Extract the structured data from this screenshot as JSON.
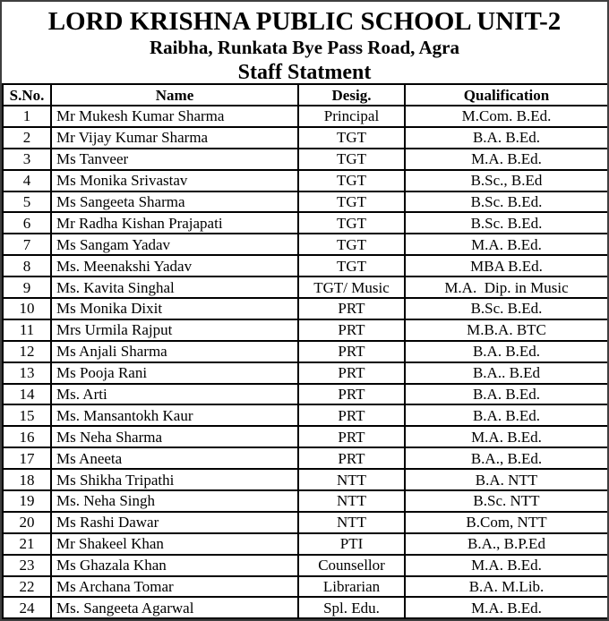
{
  "page": {
    "title": "LORD KRISHNA PUBLIC SCHOOL UNIT-2",
    "subtitle": "Raibha, Runkata Bye Pass Road, Agra",
    "section_title": "Staff Statment"
  },
  "colors": {
    "text": "#000000",
    "background": "#ffffff",
    "table_border": "#000000",
    "page_border": "#3f3f3f"
  },
  "table": {
    "headers": [
      "S.No.",
      "Name",
      "Desig.",
      "Qualification"
    ],
    "rows": [
      {
        "sno": "1",
        "name": "Mr Mukesh Kumar Sharma",
        "desig": "Principal",
        "qualification": "M.Com. B.Ed."
      },
      {
        "sno": "2",
        "name": "Mr Vijay Kumar Sharma",
        "desig": "TGT",
        "qualification": "B.A. B.Ed."
      },
      {
        "sno": "3",
        "name": "Ms Tanveer",
        "desig": "TGT",
        "qualification": "M.A. B.Ed."
      },
      {
        "sno": "4",
        "name": "Ms Monika Srivastav",
        "desig": "TGT",
        "qualification": "B.Sc., B.Ed"
      },
      {
        "sno": "5",
        "name": "Ms Sangeeta Sharma",
        "desig": "TGT",
        "qualification": "B.Sc. B.Ed."
      },
      {
        "sno": "6",
        "name": "Mr Radha Kishan Prajapati",
        "desig": "TGT",
        "qualification": "B.Sc. B.Ed."
      },
      {
        "sno": "7",
        "name": "Ms Sangam Yadav",
        "desig": "TGT",
        "qualification": "M.A. B.Ed."
      },
      {
        "sno": "8",
        "name": "Ms. Meenakshi Yadav",
        "desig": "TGT",
        "qualification": "MBA B.Ed."
      },
      {
        "sno": "9",
        "name": "Ms. Kavita Singhal",
        "desig": "TGT/ Music",
        "qualification": "M.A.  Dip. in Music"
      },
      {
        "sno": "10",
        "name": "Ms Monika Dixit",
        "desig": "PRT",
        "qualification": "B.Sc. B.Ed."
      },
      {
        "sno": "11",
        "name": "Mrs Urmila Rajput",
        "desig": "PRT",
        "qualification": "M.B.A. BTC"
      },
      {
        "sno": "12",
        "name": "Ms Anjali Sharma",
        "desig": "PRT",
        "qualification": "B.A. B.Ed."
      },
      {
        "sno": "13",
        "name": "Ms Pooja Rani",
        "desig": "PRT",
        "qualification": "B.A.. B.Ed"
      },
      {
        "sno": "14",
        "name": "Ms. Arti",
        "desig": "PRT",
        "qualification": "B.A. B.Ed."
      },
      {
        "sno": "15",
        "name": "Ms. Mansantokh Kaur",
        "desig": "PRT",
        "qualification": "B.A. B.Ed."
      },
      {
        "sno": "16",
        "name": "Ms Neha Sharma",
        "desig": "PRT",
        "qualification": "M.A. B.Ed."
      },
      {
        "sno": "17",
        "name": "Ms Aneeta",
        "desig": "PRT",
        "qualification": "B.A., B.Ed."
      },
      {
        "sno": "18",
        "name": "Ms Shikha Tripathi",
        "desig": "NTT",
        "qualification": "B.A. NTT"
      },
      {
        "sno": "19",
        "name": "Ms. Neha Singh",
        "desig": "NTT",
        "qualification": "B.Sc. NTT"
      },
      {
        "sno": "20",
        "name": "Ms Rashi Dawar",
        "desig": "NTT",
        "qualification": "B.Com, NTT"
      },
      {
        "sno": "21",
        "name": "Mr Shakeel Khan",
        "desig": "PTI",
        "qualification": "B.A., B.P.Ed"
      },
      {
        "sno": "23",
        "name": "Ms Ghazala Khan",
        "desig": "Counsellor",
        "qualification": "M.A. B.Ed."
      },
      {
        "sno": "22",
        "name": "Ms Archana Tomar",
        "desig": "Librarian",
        "qualification": "B.A. M.Lib."
      },
      {
        "sno": "24",
        "name": "Ms. Sangeeta Agarwal",
        "desig": "Spl. Edu.",
        "qualification": "M.A. B.Ed."
      }
    ]
  }
}
